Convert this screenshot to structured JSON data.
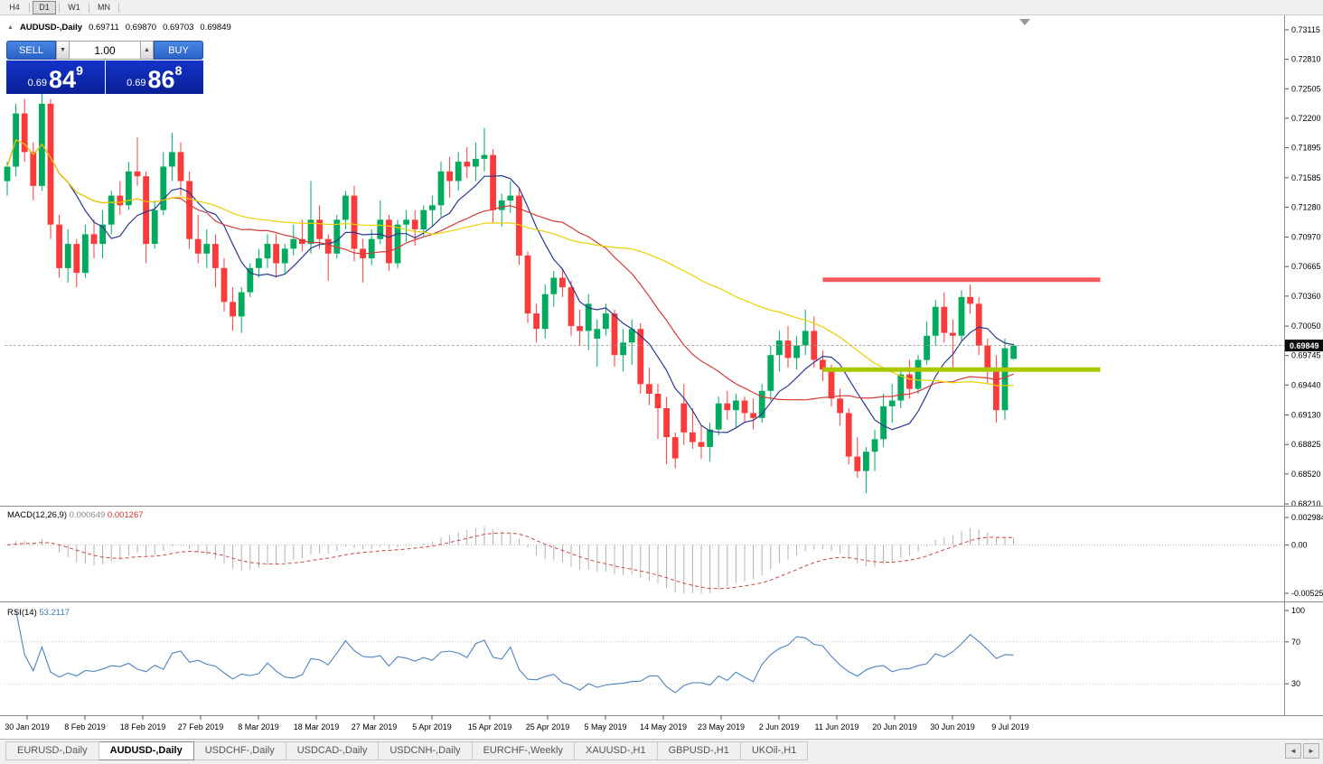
{
  "toolbar": {
    "timeframes": [
      {
        "label": "H4",
        "active": false
      },
      {
        "label": "D1",
        "active": true
      },
      {
        "label": "W1",
        "active": false
      },
      {
        "label": "MN",
        "active": false
      }
    ]
  },
  "chart": {
    "header": {
      "collapse_marker": "▲",
      "symbol": "AUDUSD-,Daily",
      "open": "0.69711",
      "high": "0.69870",
      "low": "0.69703",
      "close": "0.69849"
    },
    "trade_panel": {
      "sell_label": "SELL",
      "buy_label": "BUY",
      "volume": "1.00",
      "sell_price": {
        "prefix": "0.69",
        "big": "84",
        "sup": "9"
      },
      "buy_price": {
        "prefix": "0.69",
        "big": "86",
        "sup": "8"
      }
    },
    "price_axis": [
      "0.73115",
      "0.72810",
      "0.72505",
      "0.72200",
      "0.71895",
      "0.71585",
      "0.71280",
      "0.70970",
      "0.70665",
      "0.70360",
      "0.70050",
      "0.69745",
      "0.69440",
      "0.69130",
      "0.68825",
      "0.68520",
      "0.68210"
    ],
    "current_price": "0.69849",
    "date_axis": [
      "30 Jan 2019",
      "8 Feb 2019",
      "18 Feb 2019",
      "27 Feb 2019",
      "8 Mar 2019",
      "18 Mar 2019",
      "27 Mar 2019",
      "5 Apr 2019",
      "15 Apr 2019",
      "25 Apr 2019",
      "5 May 2019",
      "14 May 2019",
      "23 May 2019",
      "2 Jun 2019",
      "11 Jun 2019",
      "20 Jun 2019",
      "30 Jun 2019",
      "9 Jul 2019"
    ]
  },
  "macd_panel": {
    "name": "MACD(12,26,9)",
    "value_main": "0.000649",
    "value_signal": "0.001267",
    "axis": [
      "0.002984",
      "0.00",
      "-0.005256"
    ]
  },
  "rsi_panel": {
    "name": "RSI(14)",
    "value": "53.2117",
    "axis": [
      "100",
      "70",
      "30"
    ]
  },
  "tabs": [
    {
      "label": "EURUSD-,Daily",
      "active": false
    },
    {
      "label": "AUDUSD-,Daily",
      "active": true
    },
    {
      "label": "USDCHF-,Daily",
      "active": false
    },
    {
      "label": "USDCAD-,Daily",
      "active": false
    },
    {
      "label": "USDCNH-,Daily",
      "active": false
    },
    {
      "label": "EURCHF-,Weekly",
      "active": false
    },
    {
      "label": "XAUUSD-,H1",
      "active": false
    },
    {
      "label": "GBPUSD-,H1",
      "active": false
    },
    {
      "label": "UKOil-,H1",
      "active": false
    }
  ],
  "tab_scroll": {
    "left": "◄",
    "right": "►"
  },
  "chart_data": {
    "type": "candlestick",
    "symbol": "AUDUSD",
    "timeframe": "D1",
    "y_range": [
      0.6821,
      0.73115
    ],
    "colors": {
      "up": "#00ab5f",
      "down": "#fb3b3b",
      "macd_hist": "#b0b0b0",
      "macd_signal": "#cc4444",
      "rsi": "#4f81bd",
      "bid_line": "#999999"
    },
    "moving_averages": [
      {
        "period": 8,
        "color": "#2a3890"
      },
      {
        "period": 20,
        "color": "#d43b3b"
      },
      {
        "period": 45,
        "color": "#e8d200"
      }
    ],
    "levels": [
      {
        "label": "resistance",
        "price": 0.7053,
        "from_candle": 94,
        "to_candle": 126,
        "color": "#f65c5c",
        "width": 5
      },
      {
        "label": "support",
        "price": 0.696,
        "from_candle": 94,
        "to_candle": 126,
        "color": "#aac800",
        "width": 5
      }
    ],
    "indicators": [
      {
        "name": "MACD",
        "params": [
          12,
          26,
          9
        ]
      },
      {
        "name": "RSI",
        "params": [
          14
        ]
      }
    ],
    "candles": [
      [
        0.7155,
        0.7175,
        0.714,
        0.717
      ],
      [
        0.717,
        0.7235,
        0.716,
        0.7225
      ],
      [
        0.7225,
        0.724,
        0.7175,
        0.7185
      ],
      [
        0.7185,
        0.7195,
        0.7135,
        0.715
      ],
      [
        0.715,
        0.725,
        0.7145,
        0.7235
      ],
      [
        0.7235,
        0.724,
        0.7095,
        0.711
      ],
      [
        0.711,
        0.712,
        0.7055,
        0.7065
      ],
      [
        0.7065,
        0.7105,
        0.705,
        0.709
      ],
      [
        0.709,
        0.7095,
        0.7045,
        0.706
      ],
      [
        0.706,
        0.711,
        0.7055,
        0.71
      ],
      [
        0.71,
        0.7115,
        0.7075,
        0.709
      ],
      [
        0.709,
        0.7125,
        0.7075,
        0.711
      ],
      [
        0.711,
        0.7145,
        0.71,
        0.714
      ],
      [
        0.714,
        0.7155,
        0.712,
        0.713
      ],
      [
        0.713,
        0.7175,
        0.7125,
        0.7165
      ],
      [
        0.7165,
        0.72,
        0.715,
        0.716
      ],
      [
        0.716,
        0.7165,
        0.707,
        0.709
      ],
      [
        0.709,
        0.7135,
        0.7085,
        0.7125
      ],
      [
        0.7125,
        0.7185,
        0.712,
        0.717
      ],
      [
        0.717,
        0.7205,
        0.7155,
        0.7185
      ],
      [
        0.7185,
        0.7195,
        0.714,
        0.7155
      ],
      [
        0.7155,
        0.7165,
        0.7085,
        0.7095
      ],
      [
        0.7095,
        0.712,
        0.707,
        0.708
      ],
      [
        0.708,
        0.7105,
        0.7065,
        0.709
      ],
      [
        0.709,
        0.71,
        0.7045,
        0.7065
      ],
      [
        0.7065,
        0.7075,
        0.702,
        0.703
      ],
      [
        0.703,
        0.7045,
        0.7,
        0.7015
      ],
      [
        0.7015,
        0.7045,
        0.6998,
        0.704
      ],
      [
        0.704,
        0.707,
        0.7035,
        0.7065
      ],
      [
        0.7065,
        0.7085,
        0.7055,
        0.7075
      ],
      [
        0.7075,
        0.71,
        0.7065,
        0.709
      ],
      [
        0.709,
        0.71,
        0.7055,
        0.707
      ],
      [
        0.707,
        0.709,
        0.706,
        0.7085
      ],
      [
        0.7085,
        0.711,
        0.7078,
        0.7095
      ],
      [
        0.7095,
        0.7115,
        0.7082,
        0.709
      ],
      [
        0.709,
        0.7155,
        0.708,
        0.7115
      ],
      [
        0.7115,
        0.713,
        0.7085,
        0.7095
      ],
      [
        0.7095,
        0.71,
        0.7052,
        0.708
      ],
      [
        0.708,
        0.712,
        0.7075,
        0.7115
      ],
      [
        0.7115,
        0.7145,
        0.7105,
        0.714
      ],
      [
        0.714,
        0.715,
        0.7072,
        0.7085
      ],
      [
        0.7085,
        0.7095,
        0.705,
        0.7075
      ],
      [
        0.7075,
        0.7105,
        0.7068,
        0.7095
      ],
      [
        0.7095,
        0.7135,
        0.709,
        0.7115
      ],
      [
        0.7115,
        0.712,
        0.7062,
        0.707
      ],
      [
        0.707,
        0.7115,
        0.7065,
        0.711
      ],
      [
        0.711,
        0.7125,
        0.7092,
        0.7115
      ],
      [
        0.7115,
        0.7125,
        0.7088,
        0.7105
      ],
      [
        0.7105,
        0.713,
        0.7098,
        0.7125
      ],
      [
        0.7125,
        0.714,
        0.7108,
        0.713
      ],
      [
        0.713,
        0.7175,
        0.7118,
        0.7165
      ],
      [
        0.7165,
        0.718,
        0.7138,
        0.7155
      ],
      [
        0.7155,
        0.7185,
        0.7145,
        0.7175
      ],
      [
        0.7175,
        0.719,
        0.7158,
        0.717
      ],
      [
        0.717,
        0.7195,
        0.7155,
        0.7178
      ],
      [
        0.7178,
        0.721,
        0.7165,
        0.7182
      ],
      [
        0.7182,
        0.7188,
        0.7112,
        0.7125
      ],
      [
        0.7125,
        0.7142,
        0.7108,
        0.7135
      ],
      [
        0.7135,
        0.7155,
        0.7122,
        0.714
      ],
      [
        0.714,
        0.7148,
        0.7068,
        0.7078
      ],
      [
        0.7078,
        0.7082,
        0.7008,
        0.7018
      ],
      [
        0.7018,
        0.7028,
        0.6988,
        0.7002
      ],
      [
        0.7002,
        0.7048,
        0.6992,
        0.7038
      ],
      [
        0.7038,
        0.7062,
        0.7025,
        0.7055
      ],
      [
        0.7055,
        0.7065,
        0.7035,
        0.7045
      ],
      [
        0.7045,
        0.7052,
        0.6995,
        0.7005
      ],
      [
        0.7005,
        0.7022,
        0.6985,
        0.7
      ],
      [
        0.7,
        0.7038,
        0.698,
        0.7028
      ],
      [
        0.6992,
        0.7012,
        0.6963,
        0.7002
      ],
      [
        0.7002,
        0.7028,
        0.6995,
        0.7018
      ],
      [
        0.7018,
        0.7022,
        0.6963,
        0.6975
      ],
      [
        0.6975,
        0.7002,
        0.6958,
        0.6988
      ],
      [
        0.6988,
        0.7012,
        0.6965,
        0.7002
      ],
      [
        0.7002,
        0.7008,
        0.6935,
        0.6945
      ],
      [
        0.6945,
        0.6962,
        0.6923,
        0.6935
      ],
      [
        0.6935,
        0.6945,
        0.6888,
        0.692
      ],
      [
        0.692,
        0.6932,
        0.6862,
        0.689
      ],
      [
        0.689,
        0.6895,
        0.6858,
        0.6868
      ],
      [
        0.6925,
        0.6945,
        0.6882,
        0.6895
      ],
      [
        0.6895,
        0.692,
        0.6878,
        0.6885
      ],
      [
        0.6885,
        0.6902,
        0.6868,
        0.688
      ],
      [
        0.688,
        0.6905,
        0.6865,
        0.6898
      ],
      [
        0.6898,
        0.6932,
        0.6892,
        0.6925
      ],
      [
        0.6925,
        0.6938,
        0.6908,
        0.6918
      ],
      [
        0.6918,
        0.6935,
        0.69,
        0.6928
      ],
      [
        0.6928,
        0.6932,
        0.6905,
        0.6915
      ],
      [
        0.6915,
        0.693,
        0.6898,
        0.691
      ],
      [
        0.691,
        0.6945,
        0.6905,
        0.6938
      ],
      [
        0.6938,
        0.6985,
        0.6928,
        0.6975
      ],
      [
        0.6975,
        0.7,
        0.6958,
        0.699
      ],
      [
        0.699,
        0.7005,
        0.6962,
        0.6972
      ],
      [
        0.6972,
        0.6995,
        0.696,
        0.6985
      ],
      [
        0.6985,
        0.7022,
        0.6975,
        0.7
      ],
      [
        0.7,
        0.7015,
        0.6962,
        0.697
      ],
      [
        0.697,
        0.698,
        0.6948,
        0.696
      ],
      [
        0.696,
        0.6965,
        0.6922,
        0.693
      ],
      [
        0.693,
        0.694,
        0.6902,
        0.6915
      ],
      [
        0.6915,
        0.692,
        0.6862,
        0.687
      ],
      [
        0.687,
        0.689,
        0.6848,
        0.6855
      ],
      [
        0.6855,
        0.688,
        0.6832,
        0.6875
      ],
      [
        0.6875,
        0.6898,
        0.6855,
        0.6888
      ],
      [
        0.6888,
        0.6935,
        0.688,
        0.6922
      ],
      [
        0.6922,
        0.6945,
        0.6905,
        0.6928
      ],
      [
        0.6928,
        0.6962,
        0.692,
        0.6955
      ],
      [
        0.6955,
        0.697,
        0.693,
        0.694
      ],
      [
        0.694,
        0.6975,
        0.6935,
        0.697
      ],
      [
        0.697,
        0.701,
        0.6965,
        0.6995
      ],
      [
        0.6995,
        0.7032,
        0.6985,
        0.7025
      ],
      [
        0.7025,
        0.704,
        0.6988,
        0.6998
      ],
      [
        0.6998,
        0.7012,
        0.6958,
        0.6995
      ],
      [
        0.6995,
        0.7042,
        0.699,
        0.7035
      ],
      [
        0.7035,
        0.7048,
        0.7018,
        0.7028
      ],
      [
        0.7028,
        0.7035,
        0.6975,
        0.6985
      ],
      [
        0.6985,
        0.6992,
        0.6945,
        0.6958
      ],
      [
        0.6958,
        0.6975,
        0.6905,
        0.6918
      ],
      [
        0.6918,
        0.6992,
        0.6908,
        0.6982
      ],
      [
        0.69711,
        0.6987,
        0.69703,
        0.69849
      ]
    ]
  }
}
